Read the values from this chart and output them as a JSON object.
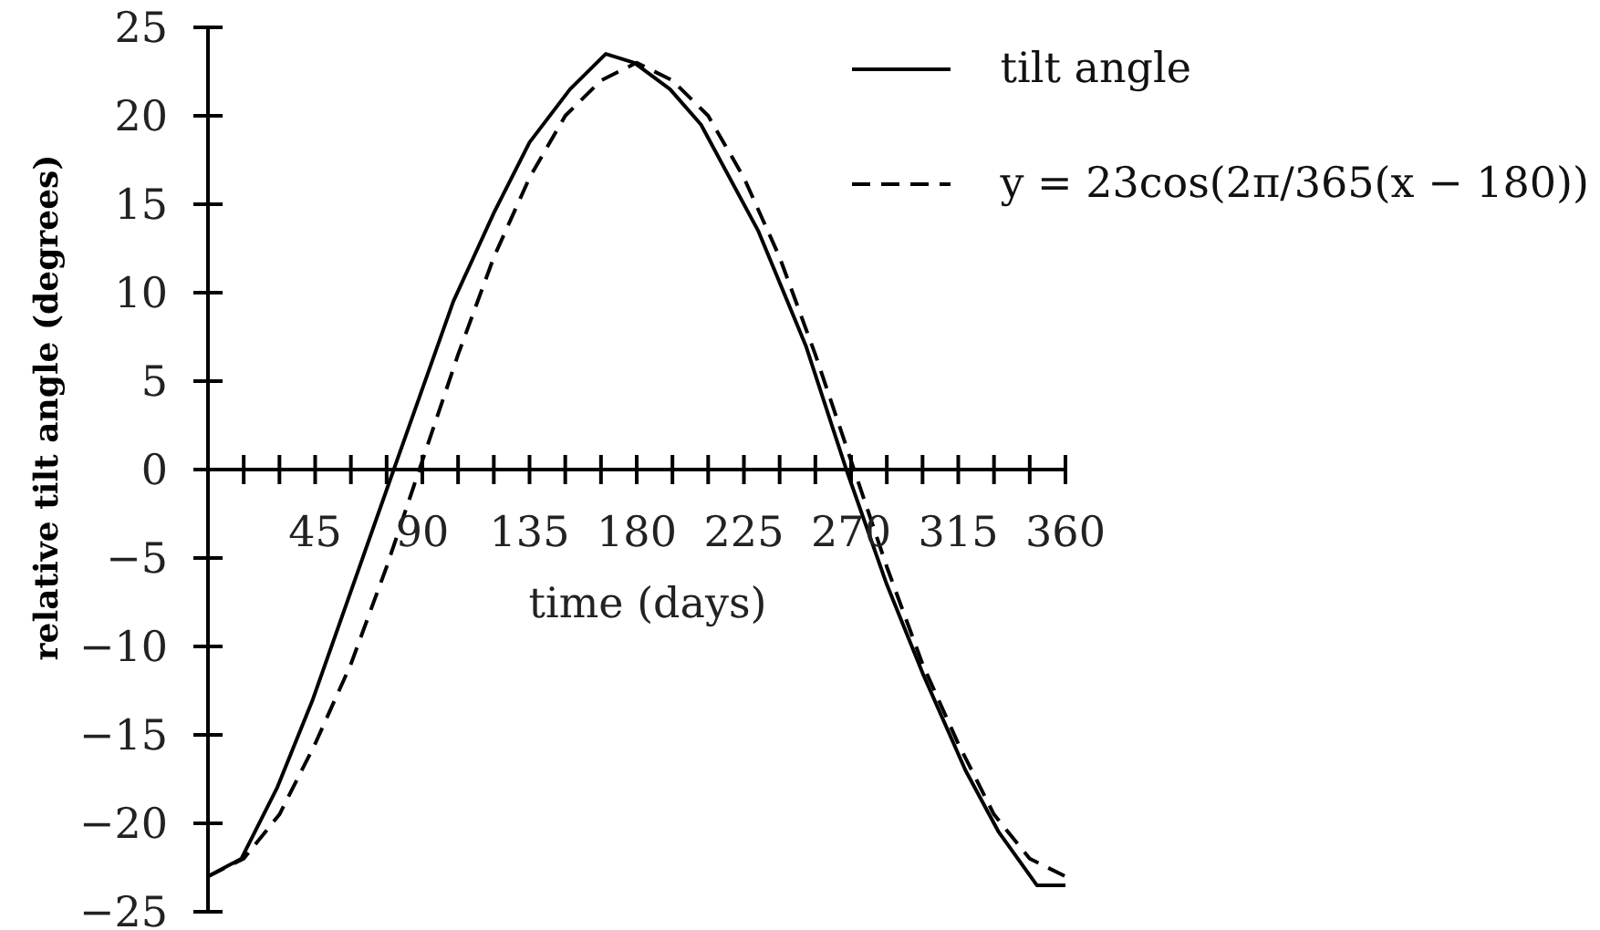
{
  "chart_data": {
    "type": "line",
    "xlabel": "time (days)",
    "ylabel": "relative tilt angle (degrees)",
    "xlim": [
      0,
      360
    ],
    "ylim": [
      -25,
      25
    ],
    "xticks": [
      {
        "value": 15,
        "label": null
      },
      {
        "value": 30,
        "label": null
      },
      45,
      {
        "value": 60,
        "label": null
      },
      {
        "value": 75,
        "label": null
      },
      90,
      {
        "value": 105,
        "label": null
      },
      {
        "value": 120,
        "label": null
      },
      135,
      {
        "value": 150,
        "label": null
      },
      {
        "value": 165,
        "label": null
      },
      180,
      {
        "value": 195,
        "label": null
      },
      {
        "value": 210,
        "label": null
      },
      225,
      {
        "value": 240,
        "label": null
      },
      {
        "value": 255,
        "label": null
      },
      270,
      {
        "value": 285,
        "label": null
      },
      {
        "value": 300,
        "label": null
      },
      315,
      {
        "value": 330,
        "label": null
      },
      {
        "value": 345,
        "label": null
      },
      360
    ],
    "yticks": [
      -25,
      -20,
      -15,
      -10,
      -5,
      0,
      5,
      10,
      15,
      20,
      25
    ],
    "legend": "top right",
    "marker": "none",
    "series": [
      {
        "name": "tilt angle",
        "color": "#000000",
        "line_style": "solid",
        "x": [
          0,
          14,
          29,
          44,
          61,
          78,
          103,
          120,
          135,
          152,
          167,
          179,
          194,
          207,
          231,
          251,
          268,
          285,
          300,
          318,
          332,
          348,
          360
        ],
        "values": [
          -23,
          -22,
          -18,
          -13,
          -6.5,
          0,
          9.5,
          14.5,
          18.5,
          21.5,
          23.5,
          23,
          21.5,
          19.5,
          13.5,
          7,
          0,
          -6.5,
          -11.5,
          -17,
          -20.5,
          -23.5,
          -23.5
        ]
      },
      {
        "name": "y = 23cos(2π/365(x − 180))",
        "color": "#000000",
        "line_style": "dashed",
        "x": [
          0,
          15,
          30,
          45,
          60,
          75,
          90,
          105,
          120,
          135,
          150,
          165,
          180,
          195,
          210,
          225,
          240,
          255,
          270,
          285,
          300,
          315,
          330,
          345,
          360
        ],
        "values": [
          -23,
          -22,
          -19.5,
          -15.5,
          -11,
          -5.5,
          0.5,
          6.5,
          12,
          16.5,
          20,
          22,
          23,
          22,
          20,
          16.5,
          12,
          6.5,
          0.5,
          -5.5,
          -11,
          -15.5,
          -19.5,
          -22,
          -23
        ]
      }
    ]
  }
}
